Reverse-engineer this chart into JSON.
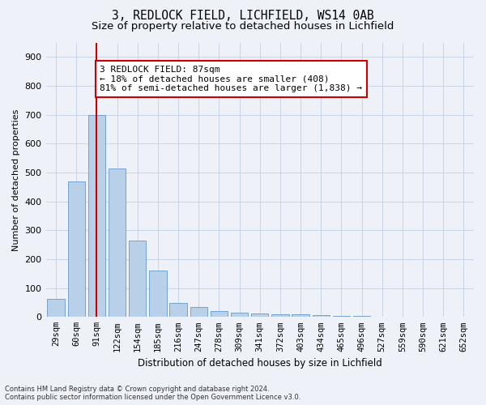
{
  "title_line1": "3, REDLOCK FIELD, LICHFIELD, WS14 0AB",
  "title_line2": "Size of property relative to detached houses in Lichfield",
  "xlabel": "Distribution of detached houses by size in Lichfield",
  "ylabel": "Number of detached properties",
  "categories": [
    "29sqm",
    "60sqm",
    "91sqm",
    "122sqm",
    "154sqm",
    "185sqm",
    "216sqm",
    "247sqm",
    "278sqm",
    "309sqm",
    "341sqm",
    "372sqm",
    "403sqm",
    "434sqm",
    "465sqm",
    "496sqm",
    "527sqm",
    "559sqm",
    "590sqm",
    "621sqm",
    "652sqm"
  ],
  "values": [
    62,
    470,
    700,
    515,
    265,
    160,
    48,
    35,
    20,
    15,
    13,
    10,
    8,
    6,
    4,
    3,
    2,
    1,
    0,
    0,
    0
  ],
  "bar_color": "#b8d0e8",
  "bar_edge_color": "#6699cc",
  "vline_x": 2,
  "vline_color": "#cc0000",
  "annotation_text": "3 REDLOCK FIELD: 87sqm\n← 18% of detached houses are smaller (408)\n81% of semi-detached houses are larger (1,838) →",
  "annotation_box_facecolor": "#ffffff",
  "annotation_box_edgecolor": "#cc0000",
  "ylim_max": 950,
  "yticks": [
    0,
    100,
    200,
    300,
    400,
    500,
    600,
    700,
    800,
    900
  ],
  "grid_color": "#c8d4e4",
  "bg_color": "#eef2f8",
  "footer": "Contains HM Land Registry data © Crown copyright and database right 2024.\nContains public sector information licensed under the Open Government Licence v3.0.",
  "title1_fontsize": 10.5,
  "title2_fontsize": 9.5,
  "xlabel_fontsize": 8.5,
  "ylabel_fontsize": 8,
  "xtick_fontsize": 7.5,
  "ytick_fontsize": 8,
  "annot_fontsize": 8,
  "footer_fontsize": 6
}
